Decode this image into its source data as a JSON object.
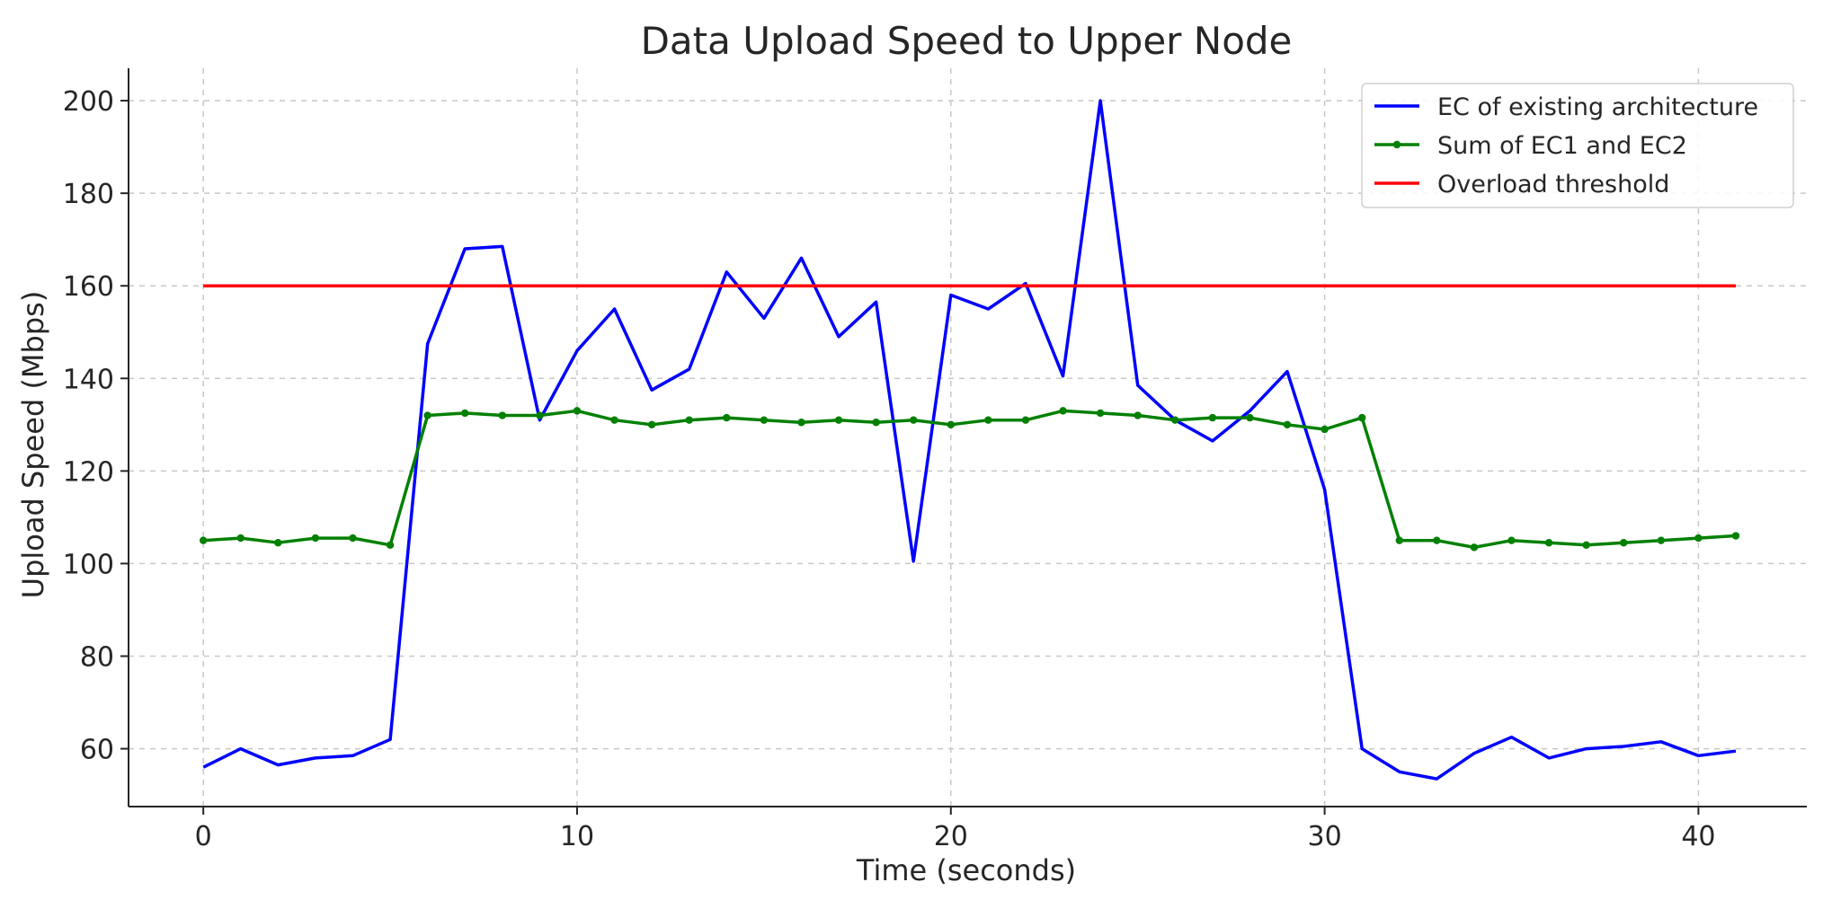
{
  "chart_data": {
    "type": "line",
    "title": "Data Upload Speed to Upper Node",
    "xlabel": "Time (seconds)",
    "ylabel": "Upload Speed (Mbps)",
    "xlim": [
      -2,
      42.9
    ],
    "ylim": [
      47.5,
      207
    ],
    "xticks": [
      0,
      10,
      20,
      30,
      40
    ],
    "yticks": [
      60,
      80,
      100,
      120,
      140,
      160,
      180,
      200
    ],
    "grid": true,
    "legend_position": "top-right",
    "x": [
      0,
      1,
      2,
      3,
      4,
      5,
      6,
      7,
      8,
      9,
      10,
      11,
      12,
      13,
      14,
      15,
      16,
      17,
      18,
      19,
      20,
      21,
      22,
      23,
      24,
      25,
      26,
      27,
      28,
      29,
      30,
      31,
      32,
      33,
      34,
      35,
      36,
      37,
      38,
      39,
      40,
      41
    ],
    "series": [
      {
        "name": "EC of existing architecture",
        "color": "#0000ff",
        "marker": "none",
        "values": [
          56,
          60,
          56.5,
          58,
          58.5,
          62,
          147.5,
          168,
          168.5,
          131,
          146,
          155,
          137.5,
          142,
          163,
          153,
          166,
          149,
          156.5,
          100.5,
          158,
          155,
          160.5,
          140.5,
          200,
          138.5,
          131,
          126.5,
          133,
          141.5,
          116,
          60,
          55,
          53.5,
          59,
          62.5,
          58,
          60,
          60.5,
          61.5,
          58.5,
          59.5
        ]
      },
      {
        "name": "Sum of EC1 and EC2",
        "color": "#008000",
        "marker": "dot",
        "values": [
          105,
          105.5,
          104.5,
          105.5,
          105.5,
          104,
          132,
          132.5,
          132,
          132,
          133,
          131,
          130,
          131,
          131.5,
          131,
          130.5,
          131,
          130.5,
          131,
          130,
          131,
          131,
          133,
          132.5,
          132,
          131,
          131.5,
          131.5,
          130,
          129,
          131.5,
          105,
          105,
          103.5,
          105,
          104.5,
          104,
          104.5,
          105,
          105.5,
          106
        ]
      },
      {
        "name": "Overload threshold",
        "color": "#ff0000",
        "marker": "none",
        "values": [
          160,
          160,
          160,
          160,
          160,
          160,
          160,
          160,
          160,
          160,
          160,
          160,
          160,
          160,
          160,
          160,
          160,
          160,
          160,
          160,
          160,
          160,
          160,
          160,
          160,
          160,
          160,
          160,
          160,
          160,
          160,
          160,
          160,
          160,
          160,
          160,
          160,
          160,
          160,
          160,
          160,
          160
        ]
      }
    ]
  }
}
